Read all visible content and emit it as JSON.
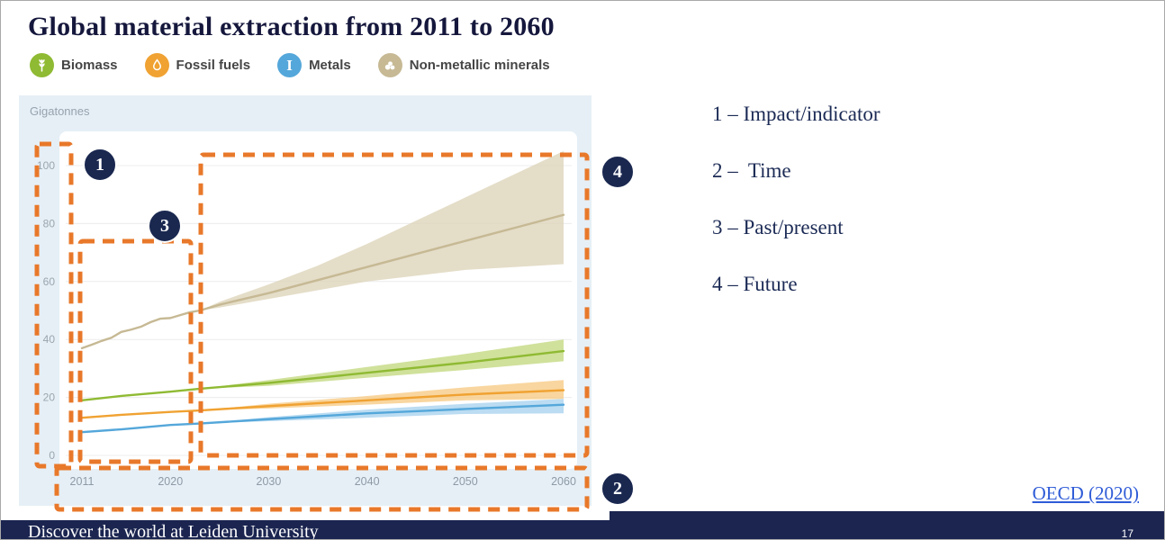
{
  "slide": {
    "title": "Global material extraction from 2011 to 2060",
    "source_link": "OECD (2020)",
    "footer_text": "Discover the world at Leiden University",
    "page_number": "17"
  },
  "legend": [
    {
      "label": "Biomass",
      "color": "#8fba33",
      "icon": "wheat-icon"
    },
    {
      "label": "Fossil fuels",
      "color": "#f0a232",
      "icon": "droplet-icon"
    },
    {
      "label": "Metals",
      "color": "#54a7da",
      "icon": "ibeam-icon"
    },
    {
      "label": "Non-metallic minerals",
      "color": "#c6b994",
      "icon": "minerals-icon"
    }
  ],
  "annotations": {
    "items": [
      {
        "num": "1",
        "label": "1 – Impact/indicator"
      },
      {
        "num": "2",
        "label": "2 –  Time"
      },
      {
        "num": "3",
        "label": "3 – Past/present"
      },
      {
        "num": "4",
        "label": "4 – Future"
      }
    ],
    "highlight_color": "#e8782a",
    "badge_color": "#1a2850"
  },
  "chart_data": {
    "type": "line",
    "title": "Global material extraction from 2011 to 2060",
    "ylabel": "Gigatonnes",
    "xlabel": "",
    "xlim": [
      2011,
      2060
    ],
    "ylim": [
      0,
      107
    ],
    "y_ticks": [
      0,
      20,
      40,
      60,
      80,
      100
    ],
    "x_ticks": [
      2011,
      2020,
      2030,
      2040,
      2050,
      2060
    ],
    "grid": true,
    "legend_position": "top",
    "band_note": "shaded uncertainty bands from 2023 (projection start) to 2060",
    "series": [
      {
        "name": "Non-metallic minerals",
        "color": "#c6b994",
        "band_color": "#dcd3b8",
        "line": [
          [
            2011,
            37
          ],
          [
            2012,
            38.2
          ],
          [
            2013,
            39.5
          ],
          [
            2014,
            40.6
          ],
          [
            2015,
            42.6
          ],
          [
            2016,
            43.4
          ],
          [
            2017,
            44.4
          ],
          [
            2018,
            46
          ],
          [
            2019,
            47.2
          ],
          [
            2020,
            47.4
          ],
          [
            2021,
            48.4
          ],
          [
            2022,
            49.4
          ],
          [
            2023,
            50
          ],
          [
            2025,
            52
          ],
          [
            2030,
            56
          ],
          [
            2035,
            60.5
          ],
          [
            2040,
            65
          ],
          [
            2045,
            69.5
          ],
          [
            2050,
            74
          ],
          [
            2055,
            78.5
          ],
          [
            2060,
            83
          ]
        ],
        "band": [
          [
            2023,
            50,
            50
          ],
          [
            2025,
            51,
            53
          ],
          [
            2030,
            54,
            59
          ],
          [
            2035,
            57,
            65.5
          ],
          [
            2040,
            60,
            73
          ],
          [
            2045,
            62,
            81
          ],
          [
            2050,
            64,
            89
          ],
          [
            2055,
            65,
            97
          ],
          [
            2060,
            66,
            105
          ]
        ]
      },
      {
        "name": "Biomass",
        "color": "#8fba33",
        "band_color": "#c3d97f",
        "line": [
          [
            2011,
            19
          ],
          [
            2015,
            20.5
          ],
          [
            2020,
            22
          ],
          [
            2023,
            23
          ],
          [
            2030,
            25
          ],
          [
            2040,
            28.5
          ],
          [
            2050,
            32
          ],
          [
            2060,
            36
          ]
        ],
        "band": [
          [
            2023,
            23,
            23
          ],
          [
            2030,
            24,
            26
          ],
          [
            2040,
            26.8,
            30.5
          ],
          [
            2050,
            29.5,
            35
          ],
          [
            2060,
            32.5,
            40
          ]
        ]
      },
      {
        "name": "Fossil fuels",
        "color": "#f0a232",
        "band_color": "#f7ca84",
        "line": [
          [
            2011,
            13
          ],
          [
            2015,
            14
          ],
          [
            2020,
            15
          ],
          [
            2023,
            15.5
          ],
          [
            2030,
            17
          ],
          [
            2040,
            19
          ],
          [
            2050,
            21
          ],
          [
            2060,
            22.5
          ]
        ],
        "band": [
          [
            2023,
            15.5,
            15.5
          ],
          [
            2030,
            16.2,
            17.8
          ],
          [
            2040,
            17.5,
            20.5
          ],
          [
            2050,
            19,
            23.5
          ],
          [
            2060,
            19.5,
            26
          ]
        ]
      },
      {
        "name": "Metals",
        "color": "#54a7da",
        "band_color": "#a8d2ee",
        "line": [
          [
            2011,
            8
          ],
          [
            2015,
            9
          ],
          [
            2020,
            10.5
          ],
          [
            2023,
            11
          ],
          [
            2030,
            12.5
          ],
          [
            2040,
            14.5
          ],
          [
            2050,
            16
          ],
          [
            2060,
            17.5
          ]
        ],
        "band": [
          [
            2023,
            11,
            11
          ],
          [
            2030,
            11.8,
            13.2
          ],
          [
            2040,
            13,
            15.8
          ],
          [
            2050,
            14.3,
            17.8
          ],
          [
            2060,
            14.5,
            19.5
          ]
        ]
      }
    ]
  }
}
